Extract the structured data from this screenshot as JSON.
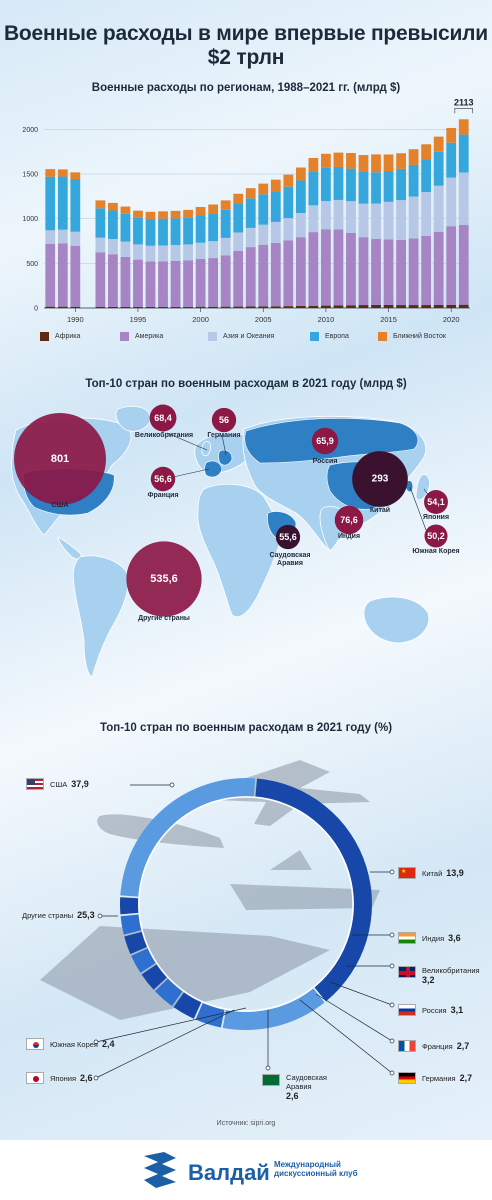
{
  "title": "Военные расходы в мире впервые превысили $2 трлн",
  "section1_title": "Военные расходы по регионам, 1988–2021 гг. (млрд $)",
  "section2_title": "Топ-10 стран по военным расходам в 2021 году (млрд $)",
  "section3_title": "Топ-10 стран по военным расходам в 2021 году (%)",
  "source": "Источник: sipri.org",
  "logo": {
    "name": "Валдай",
    "subtitle": "Международный дискуссионный клуб"
  },
  "colors": {
    "africa": "#5a2d12",
    "america": "#a784c4",
    "asia": "#b7c7e6",
    "europe": "#35a7dc",
    "middle_east": "#e4822b",
    "bubble": "#8c1846",
    "bubble_dark": "#3a1230",
    "ring_light": "#5a9ae0",
    "ring_dark": "#1747a8"
  },
  "chart_data": [
    {
      "type": "bar",
      "stacked": true,
      "title": "Военные расходы по регионам, 1988–2021 гг. (млрд $)",
      "x": [
        1988,
        1989,
        1990,
        1991,
        1992,
        1993,
        1994,
        1995,
        1996,
        1997,
        1998,
        1999,
        2000,
        2001,
        2002,
        2003,
        2004,
        2005,
        2006,
        2007,
        2008,
        2009,
        2010,
        2011,
        2012,
        2013,
        2014,
        2015,
        2016,
        2017,
        2018,
        2019,
        2020,
        2021
      ],
      "missing_x": [
        1991
      ],
      "xticks": [
        1990,
        1995,
        2000,
        2005,
        2010,
        2015,
        2020
      ],
      "yticks": [
        0,
        500,
        1000,
        1500,
        2000
      ],
      "ylim": [
        0,
        2150
      ],
      "annotation": {
        "x": 2021,
        "label": "2113"
      },
      "series": [
        {
          "name": "Африка",
          "values": [
            15,
            15,
            14,
            null,
            12,
            12,
            12,
            12,
            12,
            12,
            12,
            12,
            14,
            14,
            15,
            16,
            17,
            18,
            19,
            21,
            23,
            25,
            27,
            30,
            31,
            33,
            35,
            34,
            33,
            33,
            33,
            34,
            36,
            37
          ]
        },
        {
          "name": "Америка",
          "values": [
            705,
            710,
            680,
            null,
            610,
            590,
            560,
            530,
            510,
            510,
            515,
            520,
            535,
            545,
            575,
            625,
            665,
            690,
            710,
            735,
            770,
            825,
            855,
            850,
            810,
            760,
            740,
            735,
            730,
            745,
            775,
            820,
            880,
            895
          ]
        },
        {
          "name": "Азия и Океания",
          "values": [
            150,
            152,
            160,
            null,
            165,
            170,
            172,
            170,
            175,
            178,
            178,
            180,
            182,
            190,
            195,
            205,
            215,
            225,
            235,
            250,
            270,
            300,
            315,
            330,
            355,
            375,
            395,
            420,
            445,
            470,
            490,
            515,
            545,
            585
          ]
        },
        {
          "name": "Европа",
          "values": [
            600,
            595,
            590,
            null,
            330,
            320,
            310,
            300,
            300,
            300,
            298,
            300,
            305,
            310,
            315,
            325,
            330,
            340,
            345,
            352,
            365,
            380,
            375,
            370,
            365,
            355,
            350,
            345,
            350,
            355,
            365,
            380,
            390,
            425
          ]
        },
        {
          "name": "Ближний Восток",
          "values": [
            85,
            80,
            75,
            null,
            88,
            85,
            82,
            78,
            80,
            82,
            85,
            87,
            95,
            100,
            105,
            108,
            115,
            120,
            128,
            135,
            145,
            150,
            155,
            160,
            175,
            190,
            200,
            185,
            175,
            175,
            170,
            170,
            165,
            171
          ]
        }
      ]
    },
    {
      "type": "scatter",
      "title": "Топ-10 стран по военным расходам в 2021 году (млрд $)",
      "points": [
        {
          "name": "США",
          "value": 801
        },
        {
          "name": "Другие страны",
          "value": 535.6
        },
        {
          "name": "Китай",
          "value": 293
        },
        {
          "name": "Индия",
          "value": 76.6
        },
        {
          "name": "Великобритания",
          "value": 68.4
        },
        {
          "name": "Россия",
          "value": 65.9
        },
        {
          "name": "Франция",
          "value": 56.6
        },
        {
          "name": "Германия",
          "value": 56
        },
        {
          "name": "Саудовская Аравия",
          "value": 55.6
        },
        {
          "name": "Япония",
          "value": 54.1
        },
        {
          "name": "Южная Корея",
          "value": 50.2
        }
      ],
      "value_labels": [
        "801",
        "535,6",
        "293",
        "76,6",
        "68,4",
        "65,9",
        "56,6",
        "56",
        "55,6",
        "54,1",
        "50,2"
      ]
    },
    {
      "type": "pie",
      "title": "Топ-10 стран по военным расходам в 2021 году (%)",
      "slices": [
        {
          "name": "США",
          "value": 37.9,
          "label": "37,9"
        },
        {
          "name": "Китай",
          "value": 13.9,
          "label": "13,9"
        },
        {
          "name": "Индия",
          "value": 3.6,
          "label": "3,6"
        },
        {
          "name": "Великобритания",
          "value": 3.2,
          "label": "3,2"
        },
        {
          "name": "Россия",
          "value": 3.1,
          "label": "3,1"
        },
        {
          "name": "Франция",
          "value": 2.7,
          "label": "2,7"
        },
        {
          "name": "Германия",
          "value": 2.7,
          "label": "2,7"
        },
        {
          "name": "Саудовская Аравия",
          "value": 2.6,
          "label": "2,6"
        },
        {
          "name": "Япония",
          "value": 2.6,
          "label": "2,6"
        },
        {
          "name": "Южная Корея",
          "value": 2.4,
          "label": "2,4"
        },
        {
          "name": "Другие страны",
          "value": 25.3,
          "label": "25,3"
        }
      ]
    }
  ]
}
